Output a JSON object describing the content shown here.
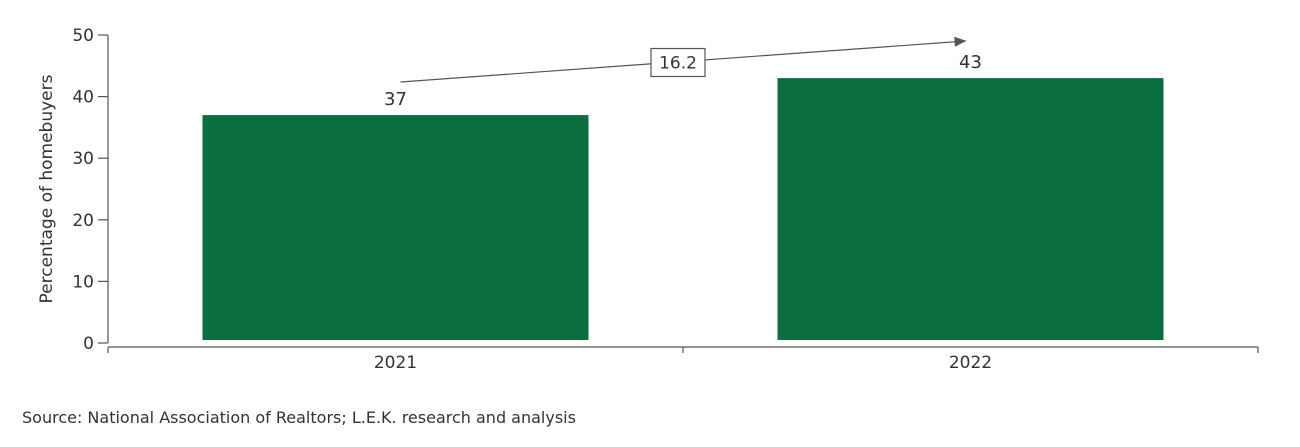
{
  "chart_data": {
    "type": "bar",
    "categories": [
      "2021",
      "2022"
    ],
    "values": [
      37,
      43
    ],
    "data_labels": [
      "37",
      "43"
    ],
    "ylabel": "Percentage of homebuyers",
    "ylim": [
      0,
      50
    ],
    "yticks": [
      "0",
      "10",
      "20",
      "30",
      "40",
      "50"
    ],
    "grid": false,
    "legend": "none",
    "annotation": {
      "label": "16.2",
      "from": "2021",
      "to": "2022"
    },
    "colors": {
      "bar": "#0a6e3f",
      "axis": "#555555",
      "text": "#333333"
    }
  },
  "source": "Source: National Association of Realtors; L.E.K. research and analysis"
}
